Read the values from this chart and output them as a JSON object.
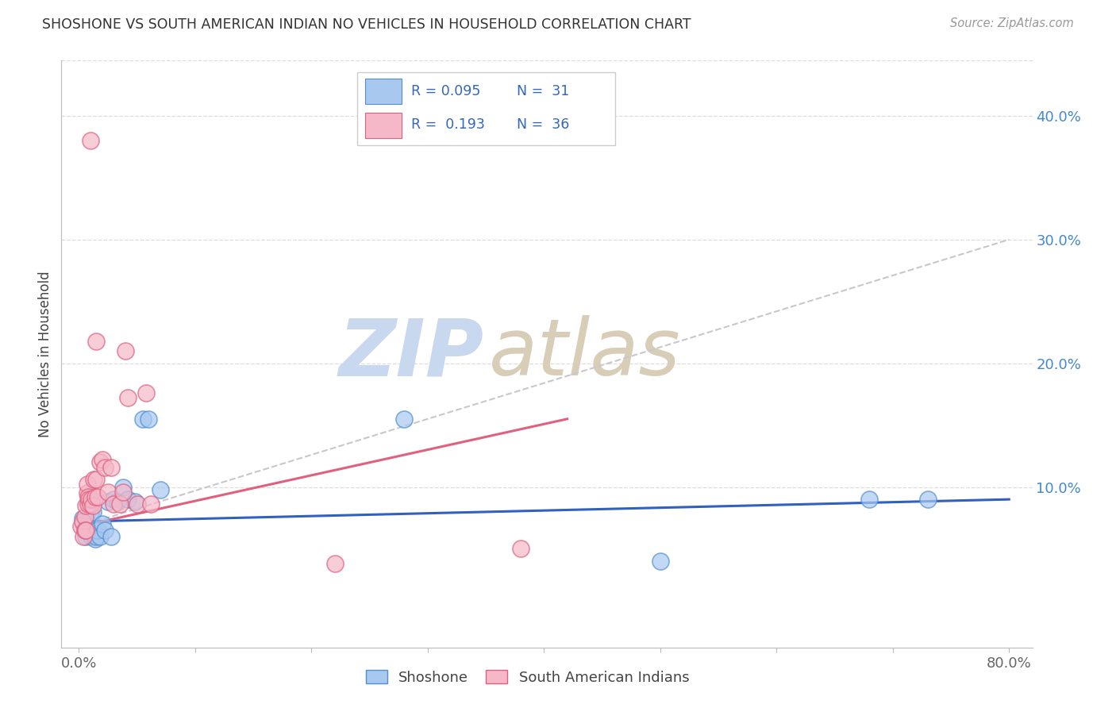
{
  "title": "SHOSHONE VS SOUTH AMERICAN INDIAN NO VEHICLES IN HOUSEHOLD CORRELATION CHART",
  "source": "Source: ZipAtlas.com",
  "ylabel": "No Vehicles in Household",
  "xlim": [
    -0.015,
    0.82
  ],
  "ylim": [
    -0.03,
    0.445
  ],
  "xtick_positions": [
    0.0,
    0.1,
    0.2,
    0.3,
    0.4,
    0.5,
    0.6,
    0.7,
    0.8
  ],
  "xtick_labels": [
    "0.0%",
    "",
    "",
    "",
    "",
    "",
    "",
    "",
    "80.0%"
  ],
  "ytick_positions": [
    0.0,
    0.1,
    0.2,
    0.3,
    0.4
  ],
  "ytick_labels": [
    "",
    "10.0%",
    "20.0%",
    "30.0%",
    "40.0%"
  ],
  "legend_r1": "R = 0.095",
  "legend_n1": "N =  31",
  "legend_r2": "R =  0.193",
  "legend_n2": "N =  36",
  "color_blue": "#A8C8F0",
  "color_pink": "#F5B8C8",
  "edge_blue": "#5090D0",
  "edge_pink": "#E06080",
  "trendline_blue": "#3060C0",
  "trendline_pink": "#E06080",
  "trendline_dash_color": "#C8C8CC",
  "grid_color": "#DDDDDD",
  "watermark_zip_color": "#C8D8EE",
  "watermark_atlas_color": "#D8CEB8",
  "shoshone_x": [
    0.003,
    0.004,
    0.005,
    0.006,
    0.007,
    0.008,
    0.009,
    0.01,
    0.011,
    0.012,
    0.013,
    0.014,
    0.015,
    0.016,
    0.018,
    0.02,
    0.022,
    0.025,
    0.028,
    0.03,
    0.033,
    0.038,
    0.042,
    0.048,
    0.055,
    0.06,
    0.07,
    0.28,
    0.68,
    0.73,
    0.5
  ],
  "shoshone_y": [
    0.075,
    0.07,
    0.065,
    0.06,
    0.065,
    0.07,
    0.065,
    0.078,
    0.06,
    0.08,
    0.065,
    0.058,
    0.06,
    0.065,
    0.06,
    0.07,
    0.065,
    0.088,
    0.06,
    0.09,
    0.088,
    0.1,
    0.09,
    0.088,
    0.155,
    0.155,
    0.098,
    0.155,
    0.09,
    0.09,
    0.04
  ],
  "sa_x": [
    0.002,
    0.003,
    0.004,
    0.005,
    0.005,
    0.006,
    0.006,
    0.007,
    0.007,
    0.008,
    0.008,
    0.009,
    0.01,
    0.011,
    0.012,
    0.013,
    0.014,
    0.015,
    0.016,
    0.018,
    0.02,
    0.022,
    0.025,
    0.028,
    0.03,
    0.035,
    0.038,
    0.04,
    0.042,
    0.05,
    0.058,
    0.062,
    0.01,
    0.015,
    0.38,
    0.22
  ],
  "sa_y": [
    0.068,
    0.072,
    0.06,
    0.076,
    0.065,
    0.065,
    0.085,
    0.095,
    0.102,
    0.086,
    0.092,
    0.09,
    0.086,
    0.09,
    0.085,
    0.106,
    0.092,
    0.106,
    0.092,
    0.12,
    0.122,
    0.116,
    0.096,
    0.116,
    0.086,
    0.086,
    0.096,
    0.21,
    0.172,
    0.086,
    0.176,
    0.086,
    0.38,
    0.218,
    0.05,
    0.038
  ],
  "blue_trend_x": [
    0.0,
    0.8
  ],
  "blue_trend_y": [
    0.072,
    0.09
  ],
  "pink_trend_x": [
    0.0,
    0.42
  ],
  "pink_trend_y": [
    0.068,
    0.155
  ],
  "dash_trend_x": [
    0.0,
    0.8
  ],
  "dash_trend_y": [
    0.068,
    0.3
  ]
}
